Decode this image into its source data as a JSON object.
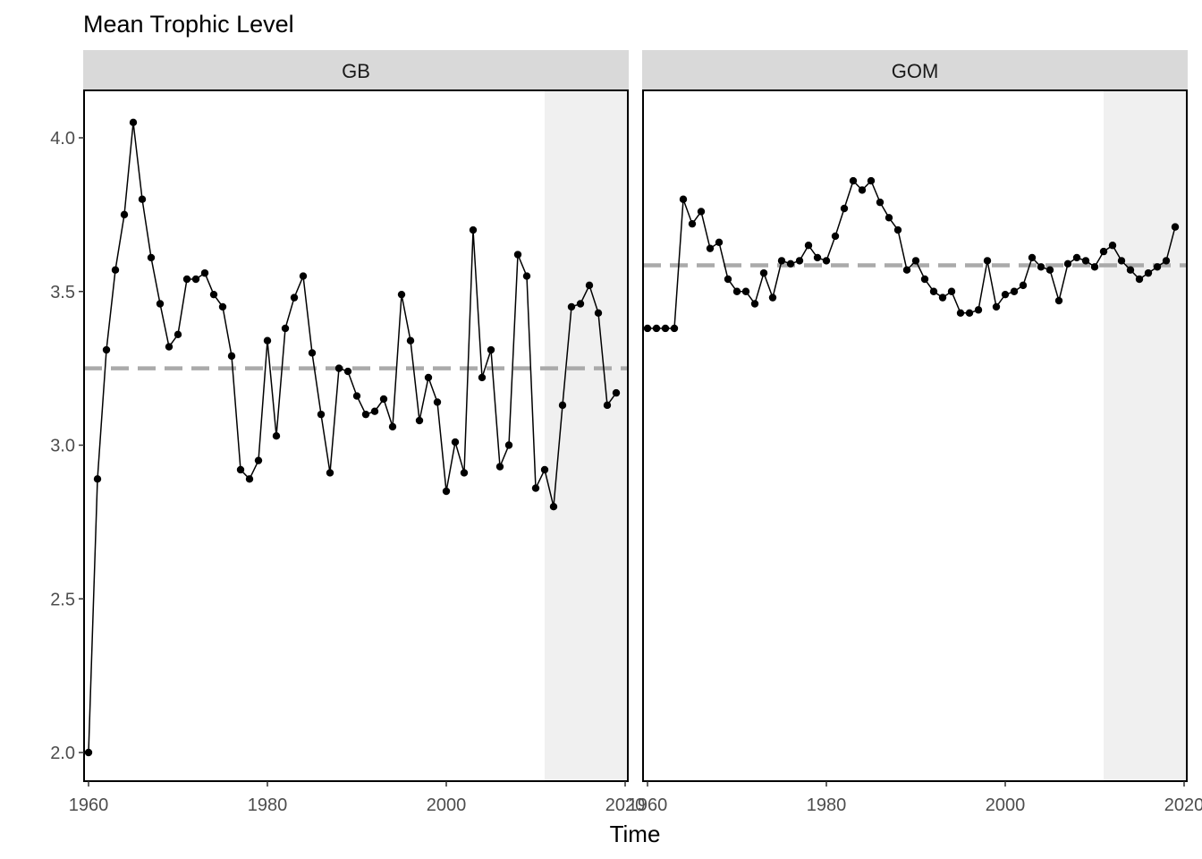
{
  "chart_data": {
    "type": "line",
    "title": "Mean Trophic Level",
    "xlabel": "Time",
    "ylabel": "",
    "xlim": [
      1960,
      2020
    ],
    "ylim": [
      1.9,
      4.15
    ],
    "x_ticks": [
      1960,
      1980,
      2000,
      2020
    ],
    "x_tick_labels": [
      "1960",
      "1980",
      "2000",
      "2020"
    ],
    "y_ticks": [
      2.0,
      2.5,
      3.0,
      3.5,
      4.0
    ],
    "y_tick_labels": [
      "2.0",
      "2.5",
      "3.0",
      "3.5",
      "4.0"
    ],
    "grid": false,
    "shaded_period": [
      2011,
      2020
    ],
    "colors": {
      "line": "#000000",
      "mean_line": "#aaaaaa",
      "shade": "#f0f0f0",
      "strip": "#d9d9d9"
    },
    "panels": [
      {
        "name": "GB",
        "mean": 3.25,
        "x": [
          1960,
          1961,
          1962,
          1963,
          1964,
          1965,
          1966,
          1967,
          1968,
          1969,
          1970,
          1971,
          1972,
          1973,
          1974,
          1975,
          1976,
          1977,
          1978,
          1979,
          1980,
          1981,
          1982,
          1983,
          1984,
          1985,
          1986,
          1987,
          1988,
          1989,
          1990,
          1991,
          1992,
          1993,
          1994,
          1995,
          1996,
          1997,
          1998,
          1999,
          2000,
          2001,
          2002,
          2003,
          2004,
          2005,
          2006,
          2007,
          2008,
          2009,
          2010,
          2011,
          2012,
          2013,
          2014,
          2015,
          2016,
          2017,
          2018,
          2019
        ],
        "values": [
          2.0,
          2.89,
          3.31,
          3.57,
          3.75,
          4.05,
          3.8,
          3.61,
          3.46,
          3.32,
          3.36,
          3.54,
          3.54,
          3.56,
          3.49,
          3.45,
          3.29,
          2.92,
          2.89,
          2.95,
          3.34,
          3.03,
          3.38,
          3.48,
          3.55,
          3.3,
          3.1,
          2.91,
          3.25,
          3.24,
          3.16,
          3.1,
          3.11,
          3.15,
          3.06,
          3.49,
          3.34,
          3.08,
          3.22,
          3.14,
          2.85,
          3.01,
          2.91,
          3.7,
          3.22,
          3.31,
          2.93,
          3.0,
          3.62,
          3.55,
          2.86,
          2.92,
          2.8,
          3.13,
          3.45,
          3.46,
          3.52,
          3.43,
          3.13,
          3.17
        ]
      },
      {
        "name": "GOM",
        "mean": 3.585,
        "x": [
          1960,
          1961,
          1962,
          1963,
          1964,
          1965,
          1966,
          1967,
          1968,
          1969,
          1970,
          1971,
          1972,
          1973,
          1974,
          1975,
          1976,
          1977,
          1978,
          1979,
          1980,
          1981,
          1982,
          1983,
          1984,
          1985,
          1986,
          1987,
          1988,
          1989,
          1990,
          1991,
          1992,
          1993,
          1994,
          1995,
          1996,
          1997,
          1998,
          1999,
          2000,
          2001,
          2002,
          2003,
          2004,
          2005,
          2006,
          2007,
          2008,
          2009,
          2010,
          2011,
          2012,
          2013,
          2014,
          2015,
          2016,
          2017,
          2018,
          2019
        ],
        "values": [
          3.38,
          3.38,
          3.38,
          3.38,
          3.8,
          3.72,
          3.76,
          3.64,
          3.66,
          3.54,
          3.5,
          3.5,
          3.46,
          3.56,
          3.48,
          3.6,
          3.59,
          3.6,
          3.65,
          3.61,
          3.6,
          3.68,
          3.77,
          3.86,
          3.83,
          3.86,
          3.79,
          3.74,
          3.7,
          3.57,
          3.6,
          3.54,
          3.5,
          3.48,
          3.5,
          3.43,
          3.43,
          3.44,
          3.6,
          3.45,
          3.49,
          3.5,
          3.52,
          3.61,
          3.58,
          3.57,
          3.47,
          3.59,
          3.61,
          3.6,
          3.58,
          3.63,
          3.65,
          3.6,
          3.57,
          3.54,
          3.56,
          3.58,
          3.6,
          3.71
        ]
      }
    ]
  }
}
